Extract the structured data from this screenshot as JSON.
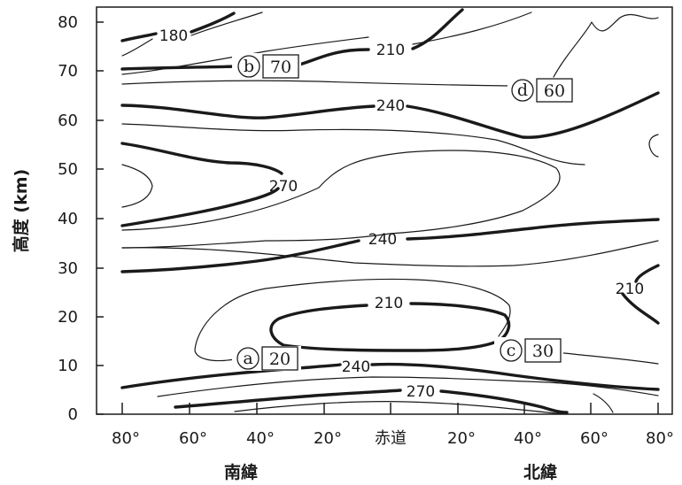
{
  "y_axis": {
    "title": "高度 (km)",
    "ticks": [
      "0",
      "10",
      "20",
      "30",
      "40",
      "50",
      "60",
      "70",
      "80"
    ]
  },
  "x_axis": {
    "ticks": [
      "80°",
      "60°",
      "40°",
      "20°",
      "赤道",
      "20°",
      "40°",
      "60°",
      "80°"
    ],
    "label_south": "南緯",
    "label_north": "北緯"
  },
  "contour_labels": {
    "c180": "180",
    "c210_top": "210",
    "c240_upper": "240",
    "c270_upper": "270",
    "c240_mid": "240",
    "c210_lower": "210",
    "c210_right": "210",
    "c240_low": "240",
    "c270_low": "270"
  },
  "markers": {
    "a": {
      "letter": "a",
      "value": "20"
    },
    "b": {
      "letter": "b",
      "value": "70"
    },
    "c": {
      "letter": "c",
      "value": "30"
    },
    "d": {
      "letter": "d",
      "value": "60"
    }
  }
}
